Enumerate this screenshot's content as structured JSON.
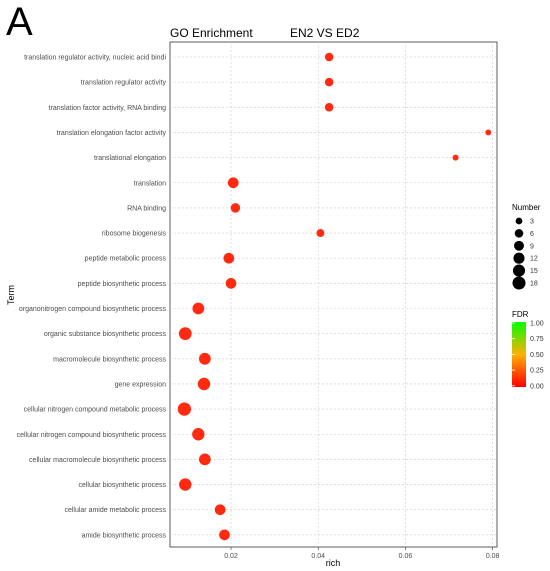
{
  "panel_letter": "A",
  "chart_data": {
    "type": "scatter",
    "title": "GO Enrichment",
    "subtitle": "EN2 VS ED2",
    "xlabel": "rich",
    "ylabel": "Term",
    "xlim": [
      0.006,
      0.081
    ],
    "x_ticks": [
      0.02,
      0.04,
      0.06,
      0.08
    ],
    "x_tick_labels": [
      "0.02",
      "0.04",
      "0.06",
      "0.08"
    ],
    "grid": true,
    "terms": [
      "translation regulator activity, nucleic acid bindi",
      "translation regulator activity",
      "translation factor activity, RNA binding",
      "translation elongation factor activity",
      "translational elongation",
      "translation",
      "RNA binding",
      "ribosome biogenesis",
      "peptide metabolic process",
      "peptide biosynthetic process",
      "organonitrogen compound biosynthetic process",
      "organic substance biosynthetic process",
      "macromolecule biosynthetic process",
      "gene expression",
      "cellular nitrogen compound metabolic process",
      "cellular nitrogen compound biosynthetic process",
      "cellular macromolecule biosynthetic process",
      "cellular biosynthetic process",
      "cellular amide metabolic process",
      "amide biosynthetic process"
    ],
    "rich": [
      0.0425,
      0.0425,
      0.0425,
      0.079,
      0.0715,
      0.0205,
      0.021,
      0.0405,
      0.0195,
      0.02,
      0.0125,
      0.0095,
      0.014,
      0.0138,
      0.0093,
      0.0125,
      0.014,
      0.0095,
      0.0175,
      0.0185
    ],
    "number": [
      6,
      6,
      6,
      2,
      2,
      11,
      8,
      5,
      11,
      11,
      14,
      17,
      14,
      16,
      19,
      16,
      14,
      16,
      11,
      11
    ],
    "fdr": [
      0.02,
      0.02,
      0.02,
      0.02,
      0.02,
      0.01,
      0.01,
      0.02,
      0.01,
      0.01,
      0.01,
      0.01,
      0.01,
      0.01,
      0.01,
      0.01,
      0.01,
      0.01,
      0.01,
      0.01
    ],
    "legend_size": {
      "title": "Number",
      "values": [
        3,
        6,
        9,
        12,
        15,
        18
      ],
      "labels": [
        "3",
        "6",
        "9",
        "12",
        "15",
        "18"
      ]
    },
    "legend_color": {
      "title": "FDR",
      "ticks": [
        "1.00",
        "0.75",
        "0.50",
        "0.25",
        "0.00"
      ],
      "colors": [
        "#00ff00",
        "#ff0000"
      ]
    },
    "point_color": "#ff2a10"
  }
}
